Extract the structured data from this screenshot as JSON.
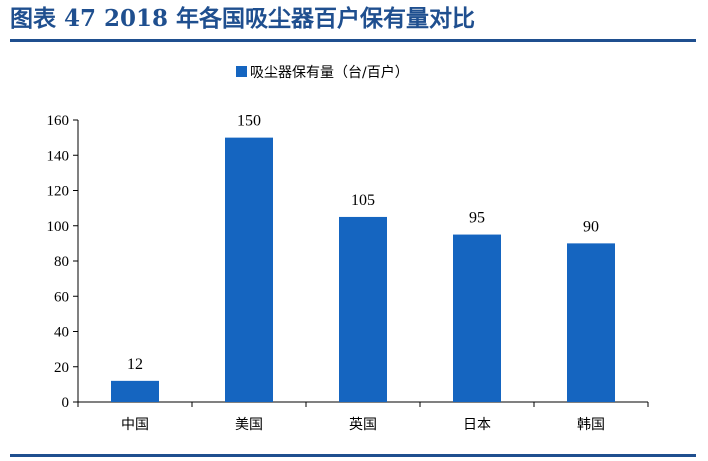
{
  "figure": {
    "title": "图表 47   2018 年各国吸尘器百户保有量对比"
  },
  "colors": {
    "bar": "#1565c0",
    "title": "#1f4f8f",
    "rule": "#1f4f8f"
  },
  "chart_data": {
    "type": "bar",
    "categories": [
      "中国",
      "美国",
      "英国",
      "日本",
      "韩国"
    ],
    "series": [
      {
        "name": "吸尘器保有量（台/百户）",
        "values": [
          12,
          150,
          105,
          95,
          90
        ]
      }
    ],
    "ylim": [
      0,
      160
    ],
    "yticks": [
      0,
      20,
      40,
      60,
      80,
      100,
      120,
      140,
      160
    ],
    "xlabel": "",
    "ylabel": "",
    "legend_position": "top-center",
    "grid": false
  }
}
